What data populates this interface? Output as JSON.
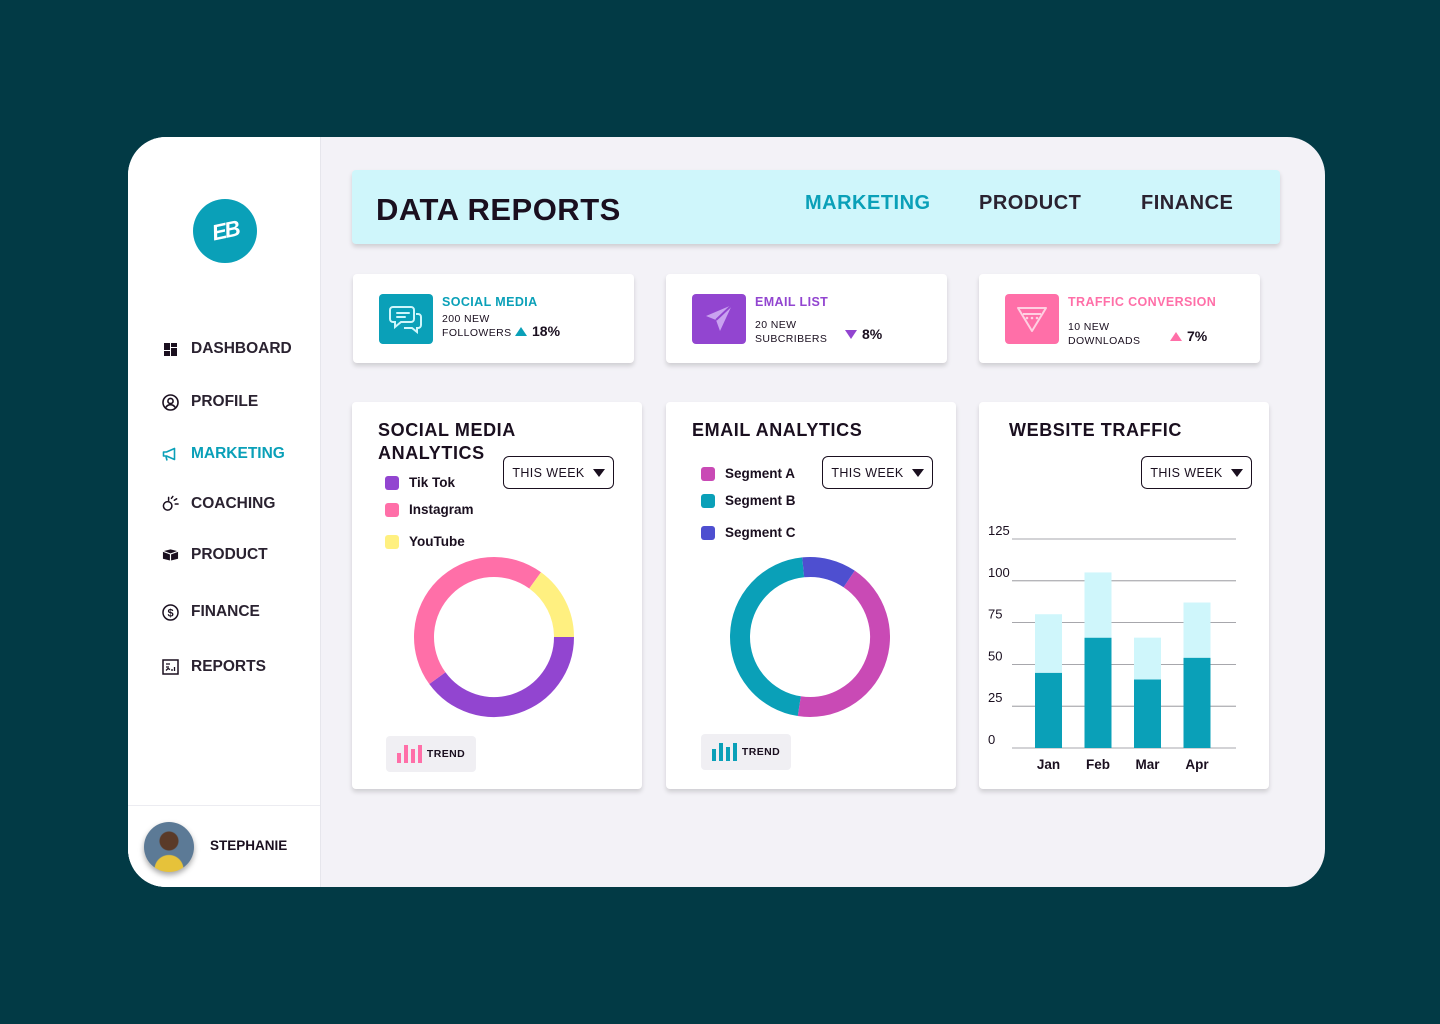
{
  "colors": {
    "teal": "#0aa0b8",
    "light_teal": "#cff6fb",
    "purple": "#9245d0",
    "pink": "#ff6fa8",
    "yellow": "#fff080",
    "magenta": "#c94ab5",
    "indigo": "#4e4fd0",
    "background": "#023a45"
  },
  "sidebar": {
    "logo_text": "EB",
    "items": [
      {
        "label": "DASHBOARD",
        "icon": "dashboard-grid-icon"
      },
      {
        "label": "PROFILE",
        "icon": "user-circle-icon"
      },
      {
        "label": "MARKETING",
        "icon": "megaphone-icon",
        "active": true
      },
      {
        "label": "COACHING",
        "icon": "coaching-icon"
      },
      {
        "label": "PRODUCT",
        "icon": "box-icon"
      },
      {
        "label": "FINANCE",
        "icon": "dollar-circle-icon"
      },
      {
        "label": "REPORTS",
        "icon": "report-icon"
      }
    ],
    "user": {
      "name": "STEPHANIE"
    }
  },
  "header": {
    "title": "DATA REPORTS",
    "tabs": [
      {
        "label": "MARKETING",
        "active": true
      },
      {
        "label": "PRODUCT"
      },
      {
        "label": "FINANCE"
      }
    ]
  },
  "stats": [
    {
      "title": "SOCIAL MEDIA",
      "desc_line1": "200 NEW",
      "desc_line2": "FOLLOWERS",
      "change": "18%",
      "direction": "up",
      "icon": "chat-bubbles-icon"
    },
    {
      "title": "EMAIL LIST",
      "desc_line1": "20 NEW",
      "desc_line2": "SUBCRIBERS",
      "change": "8%",
      "direction": "down",
      "icon": "paper-plane-icon"
    },
    {
      "title": "TRAFFIC CONVERSION",
      "desc_line1": "10 NEW",
      "desc_line2": "DOWNLOADS",
      "change": "7%",
      "direction": "up",
      "icon": "funnel-icon"
    }
  ],
  "social_card": {
    "title_line1": "SOCIAL MEDIA",
    "title_line2": "ANALYTICS",
    "dropdown": "THIS WEEK",
    "trend_label": "TREND"
  },
  "email_card": {
    "title": "EMAIL ANALYTICS",
    "dropdown": "THIS WEEK",
    "trend_label": "TREND"
  },
  "traffic_card": {
    "title": "WEBSITE TRAFFIC",
    "dropdown": "THIS WEEK"
  },
  "chart_data": [
    {
      "type": "pie",
      "title": "SOCIAL MEDIA ANALYTICS",
      "labels": [
        "Tik Tok",
        "Instagram",
        "YouTube"
      ],
      "values": [
        40,
        45,
        15
      ],
      "colors": [
        "#9245d0",
        "#ff6fa8",
        "#fff080"
      ]
    },
    {
      "type": "pie",
      "title": "EMAIL ANALYTICS",
      "labels": [
        "Segment A",
        "Segment B",
        "Segment C"
      ],
      "values": [
        43,
        46,
        11
      ],
      "colors": [
        "#c94ab5",
        "#0aa0b8",
        "#4e4fd0"
      ]
    },
    {
      "type": "bar",
      "title": "WEBSITE TRAFFIC",
      "stacked": true,
      "categories": [
        "Jan",
        "Feb",
        "Mar",
        "Apr"
      ],
      "series": [
        {
          "values": [
            45,
            66,
            41,
            54
          ]
        },
        {
          "values": [
            35,
            39,
            25,
            33
          ]
        }
      ],
      "ylim": [
        0,
        125
      ],
      "yticks": [
        0,
        25,
        50,
        75,
        100,
        125
      ],
      "grid": true
    }
  ]
}
